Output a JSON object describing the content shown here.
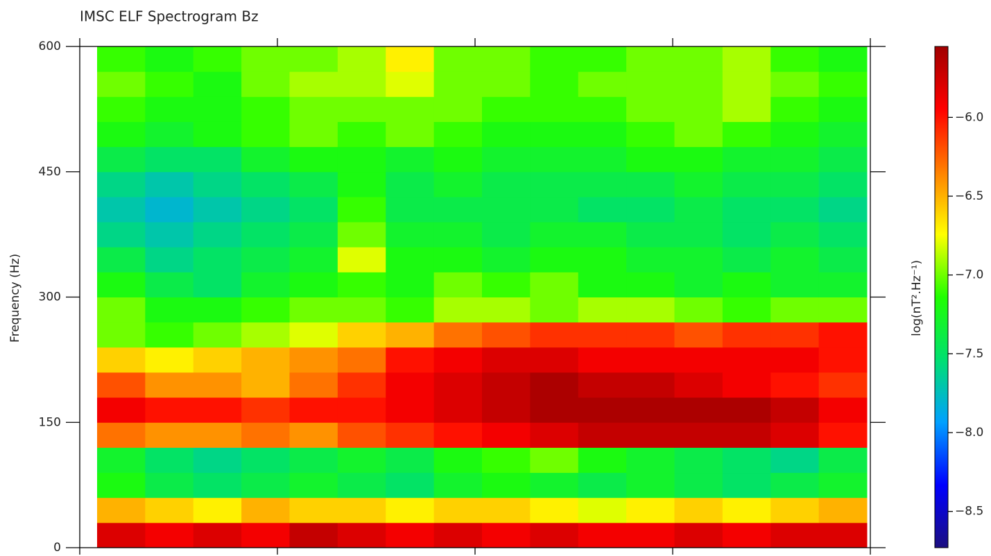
{
  "chart_data": {
    "type": "heatmap",
    "title": "IMSC ELF Spectrogram Bz",
    "ylabel": "Frequency (Hz)",
    "ylim": [
      0,
      600
    ],
    "yticks": [
      0,
      150,
      300,
      450,
      600
    ],
    "colorbar_label": "log(nT².Hz⁻¹)",
    "clim": [
      -8.73,
      -5.55
    ],
    "cticks": [
      {
        "value": -8.5,
        "label": "−8.5"
      },
      {
        "value": -8,
        "label": "−8.0"
      },
      {
        "value": -7.5,
        "label": "−7.5"
      },
      {
        "value": -7,
        "label": "−7.0"
      },
      {
        "value": -6.5,
        "label": "−6.5"
      },
      {
        "value": -6,
        "label": "−6.0"
      }
    ],
    "colormap": [
      "#1c0f80",
      "#0000ff",
      "#00a0ff",
      "#00e070",
      "#20ff00",
      "#ffff00",
      "#ff8000",
      "#ff0000",
      "#a00000"
    ],
    "z": [
      [
        -5.8,
        -5.9,
        -5.8,
        -5.9,
        -5.7,
        -5.8,
        -5.9,
        -5.8,
        -5.9,
        -5.8,
        -5.9,
        -5.9,
        -5.8,
        -5.9,
        -5.8,
        -5.8
      ],
      [
        -6.5,
        -6.6,
        -6.7,
        -6.5,
        -6.6,
        -6.6,
        -6.7,
        -6.6,
        -6.6,
        -6.7,
        -6.8,
        -6.7,
        -6.6,
        -6.7,
        -6.6,
        -6.5
      ],
      [
        -7.2,
        -7.4,
        -7.5,
        -7.4,
        -7.3,
        -7.4,
        -7.5,
        -7.3,
        -7.2,
        -7.3,
        -7.4,
        -7.3,
        -7.4,
        -7.5,
        -7.4,
        -7.3
      ],
      [
        -7.3,
        -7.5,
        -7.6,
        -7.5,
        -7.4,
        -7.3,
        -7.4,
        -7.2,
        -7.1,
        -7.0,
        -7.2,
        -7.3,
        -7.4,
        -7.5,
        -7.6,
        -7.4
      ],
      [
        -6.3,
        -6.4,
        -6.4,
        -6.3,
        -6.4,
        -6.2,
        -6.1,
        -6.0,
        -5.9,
        -5.8,
        -5.7,
        -5.7,
        -5.7,
        -5.7,
        -5.8,
        -6.0
      ],
      [
        -5.9,
        -6.0,
        -6.0,
        -6.1,
        -6.0,
        -6.0,
        -5.9,
        -5.8,
        -5.7,
        -5.6,
        -5.6,
        -5.6,
        -5.6,
        -5.6,
        -5.7,
        -5.9
      ],
      [
        -6.2,
        -6.4,
        -6.4,
        -6.5,
        -6.3,
        -6.1,
        -5.9,
        -5.8,
        -5.7,
        -5.6,
        -5.7,
        -5.7,
        -5.8,
        -5.9,
        -6.0,
        -6.1
      ],
      [
        -6.6,
        -6.7,
        -6.6,
        -6.5,
        -6.4,
        -6.3,
        -6.0,
        -5.9,
        -5.8,
        -5.8,
        -5.9,
        -5.9,
        -5.9,
        -5.9,
        -5.9,
        -6.0
      ],
      [
        -7.0,
        -7.1,
        -7.0,
        -6.9,
        -6.8,
        -6.6,
        -6.5,
        -6.3,
        -6.2,
        -6.1,
        -6.1,
        -6.1,
        -6.2,
        -6.1,
        -6.1,
        -6.0
      ],
      [
        -7.0,
        -7.2,
        -7.2,
        -7.1,
        -7.0,
        -7.0,
        -7.1,
        -6.9,
        -6.9,
        -7.0,
        -6.9,
        -6.9,
        -7.0,
        -7.1,
        -7.0,
        -7.0
      ],
      [
        -7.2,
        -7.4,
        -7.5,
        -7.3,
        -7.2,
        -7.1,
        -7.2,
        -7.0,
        -7.1,
        -7.0,
        -7.2,
        -7.2,
        -7.3,
        -7.2,
        -7.3,
        -7.3
      ],
      [
        -7.4,
        -7.6,
        -7.5,
        -7.4,
        -7.3,
        -6.8,
        -7.2,
        -7.2,
        -7.3,
        -7.2,
        -7.2,
        -7.3,
        -7.3,
        -7.4,
        -7.3,
        -7.4
      ],
      [
        -7.6,
        -7.7,
        -7.6,
        -7.5,
        -7.4,
        -7.0,
        -7.3,
        -7.3,
        -7.4,
        -7.3,
        -7.3,
        -7.4,
        -7.4,
        -7.5,
        -7.4,
        -7.5
      ],
      [
        -7.7,
        -7.8,
        -7.7,
        -7.6,
        -7.5,
        -7.1,
        -7.4,
        -7.4,
        -7.4,
        -7.4,
        -7.5,
        -7.5,
        -7.4,
        -7.5,
        -7.5,
        -7.6
      ],
      [
        -7.6,
        -7.7,
        -7.6,
        -7.5,
        -7.4,
        -7.2,
        -7.4,
        -7.3,
        -7.4,
        -7.4,
        -7.4,
        -7.4,
        -7.3,
        -7.4,
        -7.4,
        -7.5
      ],
      [
        -7.4,
        -7.5,
        -7.5,
        -7.3,
        -7.2,
        -7.2,
        -7.3,
        -7.2,
        -7.3,
        -7.3,
        -7.3,
        -7.2,
        -7.2,
        -7.3,
        -7.3,
        -7.4
      ],
      [
        -7.2,
        -7.3,
        -7.2,
        -7.1,
        -7.0,
        -7.1,
        -7.0,
        -7.1,
        -7.2,
        -7.2,
        -7.2,
        -7.1,
        -7.0,
        -7.1,
        -7.2,
        -7.3
      ],
      [
        -7.1,
        -7.2,
        -7.2,
        -7.1,
        -7.0,
        -7.0,
        -7.0,
        -7.0,
        -7.1,
        -7.1,
        -7.1,
        -7.0,
        -7.0,
        -6.9,
        -7.1,
        -7.2
      ],
      [
        -7.0,
        -7.1,
        -7.2,
        -7.0,
        -6.9,
        -6.9,
        -6.8,
        -7.0,
        -7.0,
        -7.1,
        -7.0,
        -7.0,
        -7.0,
        -6.9,
        -7.0,
        -7.1
      ],
      [
        -7.1,
        -7.2,
        -7.1,
        -7.0,
        -7.0,
        -6.9,
        -6.7,
        -7.0,
        -7.0,
        -7.1,
        -7.1,
        -7.0,
        -7.0,
        -6.9,
        -7.1,
        -7.2
      ]
    ]
  }
}
